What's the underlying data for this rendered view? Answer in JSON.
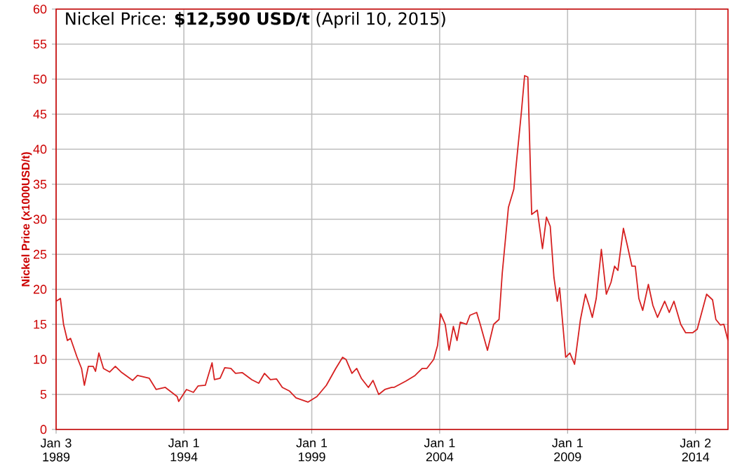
{
  "chart_data": {
    "type": "line",
    "title": "Nickel Price: **$12,590 USD/t** (April 10, 2015)",
    "ylabel": "Nickel Price (x1000USD/t)",
    "x": [
      "1989-01-03",
      "1989-03-05",
      "1989-04-19",
      "1989-06-13",
      "1989-07-28",
      "1989-10-26",
      "1990-01-01",
      "1990-02-10",
      "1990-04-08",
      "1990-06-16",
      "1990-07-19",
      "1990-09-05",
      "1990-11-10",
      "1991-02-07",
      "1991-04-28",
      "1991-07-19",
      "1992-01-01",
      "1992-03-09",
      "1992-08-25",
      "1992-12-02",
      "1993-04-11",
      "1993-09-27",
      "1993-10-19",
      "1994-02-07",
      "1994-05-17",
      "1994-07-22",
      "1994-11-03",
      "1995-02-07",
      "1995-03-13",
      "1995-06-02",
      "1995-08-07",
      "1995-11-03",
      "1996-01-08",
      "1996-04-15",
      "1996-08-28",
      "1996-12-05",
      "1997-02-25",
      "1997-05-21",
      "1997-08-17",
      "1997-11-07",
      "1998-02-14",
      "1998-05-21",
      "1998-11-07",
      "1999-03-16",
      "1999-07-28",
      "1999-12-09",
      "2000-03-16",
      "2000-05-03",
      "2000-07-28",
      "2000-10-04",
      "2000-12-09",
      "2001-03-20",
      "2001-05-25",
      "2001-08-14",
      "2001-11-10",
      "2002-02-17",
      "2002-03-20",
      "2002-09-05",
      "2003-01-15",
      "2003-04-26",
      "2003-07-01",
      "2003-10-08",
      "2003-12-02",
      "2004-01-15",
      "2004-03-20",
      "2004-05-14",
      "2004-07-15",
      "2004-09-05",
      "2004-10-22",
      "2005-01-19",
      "2005-03-09",
      "2005-06-13",
      "2005-08-03",
      "2005-11-14",
      "2006-02-10",
      "2006-04-28",
      "2006-06-13",
      "2006-09-09",
      "2006-11-25",
      "2007-03-13",
      "2007-04-28",
      "2007-06-13",
      "2007-08-07",
      "2007-10-26",
      "2008-01-08",
      "2008-03-05",
      "2008-04-28",
      "2008-06-20",
      "2008-08-07",
      "2008-09-09",
      "2008-12-05",
      "2009-02-03",
      "2009-04-11",
      "2009-07-04",
      "2009-09-13",
      "2009-11-03",
      "2009-12-20",
      "2010-02-14",
      "2010-04-28",
      "2010-07-08",
      "2010-09-13",
      "2010-11-03",
      "2010-12-20",
      "2011-03-09",
      "2011-05-03",
      "2011-07-08",
      "2011-08-25",
      "2011-10-15",
      "2011-12-09",
      "2012-02-28",
      "2012-05-03",
      "2012-07-08",
      "2012-10-19",
      "2012-12-23",
      "2013-02-28",
      "2013-06-05",
      "2013-08-14",
      "2013-11-21",
      "2014-01-26",
      "2014-06-09",
      "2014-09-02",
      "2014-10-19",
      "2014-12-23",
      "2015-02-10",
      "2015-04-10"
    ],
    "series": [
      {
        "color": "#d62020",
        "values": [
          18.3,
          18.7,
          15,
          12.7,
          13,
          10.4,
          8.7,
          6.3,
          9,
          9,
          8.3,
          10.9,
          8.7,
          8.2,
          9,
          8.2,
          7,
          7.7,
          7.3,
          5.7,
          6,
          4.7,
          4,
          5.7,
          5.3,
          6.2,
          6.3,
          9.5,
          7.1,
          7.3,
          8.8,
          8.7,
          8,
          8.1,
          7.1,
          6.6,
          8,
          7.1,
          7.2,
          6,
          5.5,
          4.5,
          3.9,
          4.7,
          6.3,
          8.7,
          10.3,
          10,
          8,
          8.7,
          7.3,
          6,
          7,
          5,
          5.7,
          6,
          6,
          6.9,
          7.7,
          8.7,
          8.7,
          10,
          12,
          16.5,
          15,
          11.3,
          14.7,
          12.7,
          15.3,
          15,
          16.3,
          16.7,
          15,
          11.3,
          15,
          15.7,
          22.3,
          31.7,
          34.3,
          45.3,
          50.5,
          50.3,
          30.7,
          31.3,
          25.8,
          30.3,
          29,
          21.7,
          18.3,
          20.2,
          10.3,
          10.9,
          9.3,
          15.7,
          19.3,
          17.7,
          16,
          18.7,
          25.7,
          19.3,
          21,
          23.3,
          22.7,
          28.7,
          26.3,
          23.3,
          23.3,
          18.7,
          17,
          20.7,
          17.7,
          16,
          18.3,
          16.7,
          18.3,
          15,
          13.8,
          13.8,
          14.3,
          19.3,
          18.5,
          15.7,
          14.9,
          15,
          12.7
        ]
      }
    ],
    "xlim": [
      "1989-01-03",
      "2015-04-10"
    ],
    "ylim": [
      0,
      60
    ],
    "xticks": [
      {
        "value": "1989-01-03",
        "label": "Jan 3 1989"
      },
      {
        "value": "1994-01-01",
        "label": "Jan 1 1994"
      },
      {
        "value": "1999-01-01",
        "label": "Jan 1 1999"
      },
      {
        "value": "2004-01-01",
        "label": "Jan 1 2004"
      },
      {
        "value": "2009-01-01",
        "label": "Jan 1 2009"
      },
      {
        "value": "2014-01-02",
        "label": "Jan 2 2014"
      }
    ],
    "yticks": [
      0,
      5,
      10,
      15,
      20,
      25,
      30,
      35,
      40,
      45,
      50,
      55,
      60
    ],
    "grid": true,
    "marker": "none",
    "line_style": "solid"
  }
}
